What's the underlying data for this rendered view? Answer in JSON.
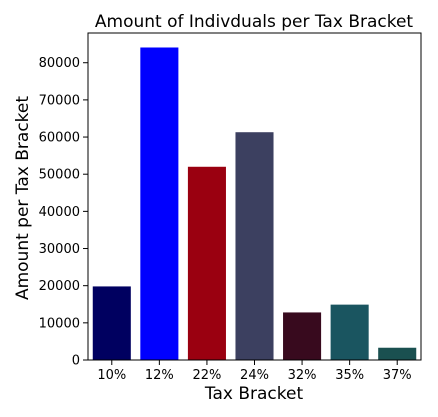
{
  "chart_data": {
    "type": "bar",
    "title": "Amount of Indivduals per Tax Bracket",
    "xlabel": "Tax Bracket",
    "ylabel": "Amount per Tax Bracket",
    "categories": [
      "10%",
      "12%",
      "22%",
      "24%",
      "32%",
      "35%",
      "37%"
    ],
    "values": [
      19800,
      84100,
      52000,
      61300,
      12800,
      14900,
      3300
    ],
    "colors": [
      "#000060",
      "#0000ff",
      "#9a0010",
      "#3c4060",
      "#380a1e",
      "#1a5560",
      "#1a5050"
    ],
    "ylim": [
      0,
      88000
    ],
    "yticks": [
      0,
      10000,
      20000,
      30000,
      40000,
      50000,
      60000,
      70000,
      80000
    ],
    "grid": false,
    "legend": "none"
  }
}
